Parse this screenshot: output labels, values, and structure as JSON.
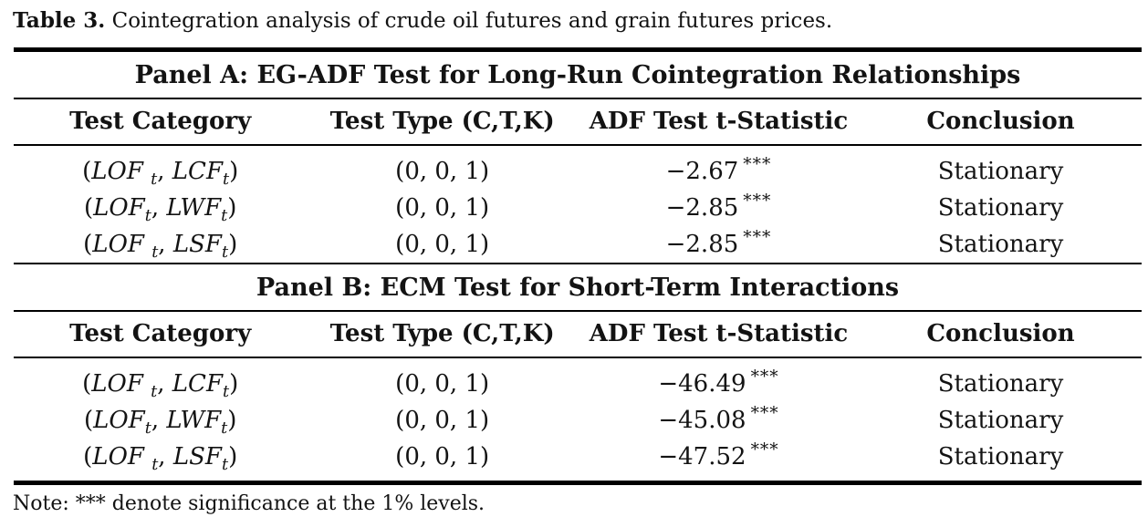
{
  "caption": {
    "label": "Table 3.",
    "text": " Cointegration analysis of crude oil futures and grain futures prices."
  },
  "table": {
    "headers": [
      "Test Category",
      "Test Type (C,T,K)",
      "ADF Test t-Statistic",
      "Conclusion"
    ],
    "panels": [
      {
        "title": "Panel A: EG-ADF Test for Long-Run Cointegration Relationships",
        "rows": [
          {
            "category": "(LOF _t, LCF_t)",
            "test_type": "(0, 0, 1)",
            "stat": "−2.67",
            "sig": "***",
            "conclusion": "Stationary"
          },
          {
            "category": "(LOF_t, LWF_t)",
            "test_type": "(0, 0, 1)",
            "stat": "−2.85",
            "sig": "***",
            "conclusion": "Stationary"
          },
          {
            "category": "(LOF _t, LSF_t)",
            "test_type": "(0, 0, 1)",
            "stat": "−2.85",
            "sig": "***",
            "conclusion": "Stationary"
          }
        ]
      },
      {
        "title": "Panel B: ECM Test for Short-Term Interactions",
        "rows": [
          {
            "category": "(LOF _t, LCF_t)",
            "test_type": "(0, 0, 1)",
            "stat": "−46.49",
            "sig": "***",
            "conclusion": "Stationary"
          },
          {
            "category": "(LOF_t, LWF_t)",
            "test_type": "(0, 0, 1)",
            "stat": "−45.08",
            "sig": "***",
            "conclusion": "Stationary"
          },
          {
            "category": "(LOF _t, LSF_t)",
            "test_type": "(0, 0, 1)",
            "stat": "−47.52",
            "sig": "***",
            "conclusion": "Stationary"
          }
        ]
      }
    ]
  },
  "note": "Note: *** denote significance at the 1% levels."
}
